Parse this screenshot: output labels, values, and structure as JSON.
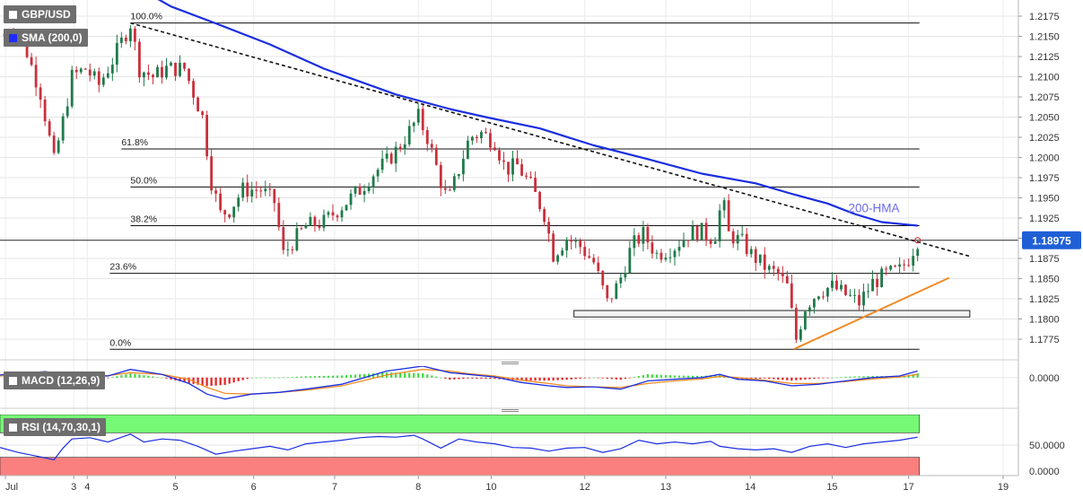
{
  "chart_data": {
    "type": "candlestick",
    "symbol": "GBP/USD",
    "indicators": {
      "sma": "SMA (200,0)",
      "macd": "MACD (12,26,9)",
      "rsi": "RSI (14,70,30,1)"
    },
    "price_axis": {
      "ylim": [
        1.1755,
        1.2185
      ],
      "ticks": [
        "1.2175",
        "1.2150",
        "1.2125",
        "1.2100",
        "1.2075",
        "1.2050",
        "1.2025",
        "1.2000",
        "1.1975",
        "1.1950",
        "1.1925",
        "1.1900",
        "1.1875",
        "1.1850",
        "1.1825",
        "1.1800",
        "1.1775"
      ]
    },
    "last_price": "1.18975",
    "x_axis": {
      "labels": [
        {
          "text": "Jul",
          "pos": 0.6
        },
        {
          "text": "3",
          "pos": 8.2
        },
        {
          "text": "4",
          "pos": 9.7
        },
        {
          "text": "5",
          "pos": 19.5
        },
        {
          "text": "6",
          "pos": 28.2
        },
        {
          "text": "7",
          "pos": 37.2
        },
        {
          "text": "8",
          "pos": 46.5
        },
        {
          "text": "10",
          "pos": 54.6
        },
        {
          "text": "12",
          "pos": 65
        },
        {
          "text": "13",
          "pos": 74
        },
        {
          "text": "14",
          "pos": 83.4
        },
        {
          "text": "15",
          "pos": 92.5
        },
        {
          "text": "17",
          "pos": 101
        },
        {
          "text": "19",
          "pos": 111.5
        }
      ],
      "range": [
        0,
        113.2
      ]
    },
    "fibonacci": [
      {
        "label": "100.0%",
        "price": 1.21665,
        "start": 14.5
      },
      {
        "label": "61.8%",
        "price": 1.20105,
        "start": 13.5
      },
      {
        "label": "50.0%",
        "price": 1.19635,
        "start": 14.5
      },
      {
        "label": "38.2%",
        "price": 1.19155,
        "start": 14.5
      },
      {
        "label": "23.6%",
        "price": 1.18565,
        "start": 12.2
      },
      {
        "label": "0.0%",
        "price": 1.17625,
        "start": 12.2
      }
    ],
    "hma_label": "200-HMA",
    "hma": [
      [
        0,
        1.2229
      ],
      [
        8,
        1.2218
      ],
      [
        16,
        1.2206
      ],
      [
        19,
        1.2187
      ],
      [
        24,
        1.2166
      ],
      [
        30,
        1.214
      ],
      [
        36,
        1.211
      ],
      [
        44,
        1.2078
      ],
      [
        50,
        1.206
      ],
      [
        54,
        1.205
      ],
      [
        60,
        1.2036
      ],
      [
        66,
        1.2015
      ],
      [
        72,
        1.1998
      ],
      [
        78,
        1.198
      ],
      [
        84,
        1.1968
      ],
      [
        88,
        1.1955
      ],
      [
        92,
        1.1943
      ],
      [
        95,
        1.193
      ],
      [
        98,
        1.192
      ],
      [
        102,
        1.19155
      ]
    ],
    "downtrend": [
      [
        14.5,
        1.21665
      ],
      [
        108,
        1.1877
      ]
    ],
    "uptrend": [
      [
        88.3,
        1.1763
      ],
      [
        105.5,
        1.1851
      ]
    ],
    "support_zone": [
      63.8,
      107.8,
      1.18105,
      1.18025
    ],
    "current_price_line": 1.18975,
    "close_path": [
      [
        0,
        1.215
      ],
      [
        1.5,
        1.216
      ],
      [
        3,
        1.213
      ],
      [
        4.5,
        1.208
      ],
      [
        6,
        1.1995
      ],
      [
        7,
        1.2045
      ],
      [
        8,
        1.21
      ],
      [
        9.5,
        1.211
      ],
      [
        11,
        1.209
      ],
      [
        12.5,
        1.212
      ],
      [
        14.5,
        1.2166
      ],
      [
        15.5,
        1.211
      ],
      [
        17,
        1.21
      ],
      [
        18.5,
        1.211
      ],
      [
        20.5,
        1.211
      ],
      [
        21.5,
        1.208
      ],
      [
        22.5,
        1.205
      ],
      [
        23.5,
        1.197
      ],
      [
        24.5,
        1.193
      ],
      [
        25.5,
        1.1935
      ],
      [
        27,
        1.196
      ],
      [
        29,
        1.196
      ],
      [
        30.5,
        1.1945
      ],
      [
        31.5,
        1.188
      ],
      [
        32.5,
        1.1895
      ],
      [
        34,
        1.1915
      ],
      [
        36,
        1.192
      ],
      [
        37,
        1.193
      ],
      [
        38.5,
        1.1945
      ],
      [
        40,
        1.196
      ],
      [
        41.5,
        1.198
      ],
      [
        43,
        1.1995
      ],
      [
        44.5,
        1.2015
      ],
      [
        46.5,
        1.205
      ],
      [
        47.5,
        1.2025
      ],
      [
        49,
        1.197
      ],
      [
        49.8,
        1.1945
      ],
      [
        51,
        1.1985
      ],
      [
        52.2,
        1.2025
      ],
      [
        53.5,
        1.203
      ],
      [
        55,
        1.202
      ],
      [
        56.2,
        1.1985
      ],
      [
        57.5,
        1.199
      ],
      [
        59,
        1.1965
      ],
      [
        60.5,
        1.193
      ],
      [
        61.5,
        1.188
      ],
      [
        63,
        1.19
      ],
      [
        64.5,
        1.189
      ],
      [
        66,
        1.187
      ],
      [
        67.5,
        1.182
      ],
      [
        68.8,
        1.1845
      ],
      [
        70.2,
        1.189
      ],
      [
        71.5,
        1.1905
      ],
      [
        73,
        1.188
      ],
      [
        75,
        1.189
      ],
      [
        76.5,
        1.1905
      ],
      [
        77.8,
        1.191
      ],
      [
        78.8,
        1.19
      ],
      [
        79.5,
        1.1905
      ],
      [
        80.3,
        1.195
      ],
      [
        81,
        1.1905
      ],
      [
        82.5,
        1.1895
      ],
      [
        83.5,
        1.188
      ],
      [
        84.5,
        1.187
      ],
      [
        85.5,
        1.186
      ],
      [
        86.5,
        1.1855
      ],
      [
        87.5,
        1.184
      ],
      [
        88.5,
        1.1775
      ],
      [
        89.5,
        1.1815
      ],
      [
        91,
        1.1835
      ],
      [
        92.5,
        1.184
      ],
      [
        94,
        1.183
      ],
      [
        95.5,
        1.182
      ],
      [
        97,
        1.1845
      ],
      [
        98.5,
        1.1855
      ],
      [
        100,
        1.186
      ],
      [
        101,
        1.1875
      ],
      [
        102,
        1.18975
      ]
    ],
    "macd": {
      "label_zero": "0.0000",
      "macd_path": [
        [
          0,
          0.0008
        ],
        [
          5,
          0.0018
        ],
        [
          9,
          0.0005
        ],
        [
          12,
          0.0005
        ],
        [
          14.5,
          0.0025
        ],
        [
          18,
          0.001
        ],
        [
          21,
          -0.0018
        ],
        [
          23,
          -0.005
        ],
        [
          25,
          -0.0065
        ],
        [
          28,
          -0.005
        ],
        [
          31,
          -0.0045
        ],
        [
          34,
          -0.0035
        ],
        [
          38,
          -0.002
        ],
        [
          43,
          0.002
        ],
        [
          47,
          0.0035
        ],
        [
          50,
          0.0015
        ],
        [
          52,
          0.001
        ],
        [
          55,
          0.0002
        ],
        [
          58,
          -0.0015
        ],
        [
          61,
          -0.0025
        ],
        [
          63,
          -0.003
        ],
        [
          66,
          -0.0028
        ],
        [
          69,
          -0.0035
        ],
        [
          72,
          -0.001
        ],
        [
          75,
          -0.0005
        ],
        [
          78,
          0.0
        ],
        [
          80,
          0.001
        ],
        [
          82,
          -0.0005
        ],
        [
          85,
          -0.001
        ],
        [
          88,
          -0.0025
        ],
        [
          91,
          -0.002
        ],
        [
          94,
          -0.001
        ],
        [
          97,
          0.0
        ],
        [
          100,
          0.0005
        ],
        [
          102,
          0.002
        ]
      ],
      "signal_path": [
        [
          0,
          0.0005
        ],
        [
          5,
          0.0012
        ],
        [
          9,
          0.0008
        ],
        [
          12,
          0.0006
        ],
        [
          14.5,
          0.0015
        ],
        [
          18,
          0.001
        ],
        [
          21,
          -0.0005
        ],
        [
          23,
          -0.003
        ],
        [
          25,
          -0.0048
        ],
        [
          28,
          -0.005
        ],
        [
          31,
          -0.0045
        ],
        [
          34,
          -0.0038
        ],
        [
          38,
          -0.0025
        ],
        [
          43,
          0.0008
        ],
        [
          47,
          0.0025
        ],
        [
          50,
          0.002
        ],
        [
          52,
          0.0012
        ],
        [
          55,
          0.0005
        ],
        [
          58,
          -0.0008
        ],
        [
          61,
          -0.0018
        ],
        [
          63,
          -0.0025
        ],
        [
          66,
          -0.0028
        ],
        [
          69,
          -0.003
        ],
        [
          72,
          -0.0018
        ],
        [
          75,
          -0.001
        ],
        [
          78,
          -0.0004
        ],
        [
          80,
          0.0004
        ],
        [
          82,
          0.0
        ],
        [
          85,
          -0.0008
        ],
        [
          88,
          -0.0018
        ],
        [
          91,
          -0.0018
        ],
        [
          94,
          -0.0012
        ],
        [
          97,
          -0.0004
        ],
        [
          100,
          0.0002
        ],
        [
          102,
          0.001
        ]
      ]
    },
    "rsi": {
      "ticks": [
        "50.0000",
        "0.0000"
      ],
      "overbought": 70,
      "oversold": 30,
      "path": [
        [
          0,
          46
        ],
        [
          2,
          38
        ],
        [
          4,
          32
        ],
        [
          6,
          26
        ],
        [
          7,
          45
        ],
        [
          8,
          60
        ],
        [
          10,
          62
        ],
        [
          12,
          55
        ],
        [
          14.5,
          68
        ],
        [
          16,
          55
        ],
        [
          18,
          60
        ],
        [
          20,
          58
        ],
        [
          22,
          48
        ],
        [
          24,
          35
        ],
        [
          26,
          40
        ],
        [
          28,
          44
        ],
        [
          30,
          48
        ],
        [
          32,
          42
        ],
        [
          34,
          52
        ],
        [
          36,
          55
        ],
        [
          38,
          58
        ],
        [
          40,
          62
        ],
        [
          42,
          64
        ],
        [
          44,
          63
        ],
        [
          46,
          66
        ],
        [
          47,
          60
        ],
        [
          49,
          45
        ],
        [
          51,
          60
        ],
        [
          53,
          55
        ],
        [
          55,
          52
        ],
        [
          57,
          46
        ],
        [
          59,
          45
        ],
        [
          61,
          40
        ],
        [
          63,
          45
        ],
        [
          65,
          46
        ],
        [
          67,
          38
        ],
        [
          69,
          44
        ],
        [
          71,
          58
        ],
        [
          73,
          52
        ],
        [
          75,
          55
        ],
        [
          77,
          52
        ],
        [
          79,
          56
        ],
        [
          80,
          48
        ],
        [
          82,
          44
        ],
        [
          84,
          42
        ],
        [
          86,
          44
        ],
        [
          88,
          38
        ],
        [
          90,
          48
        ],
        [
          92,
          52
        ],
        [
          94,
          46
        ],
        [
          96,
          52
        ],
        [
          98,
          55
        ],
        [
          100,
          58
        ],
        [
          102,
          63
        ]
      ]
    }
  }
}
